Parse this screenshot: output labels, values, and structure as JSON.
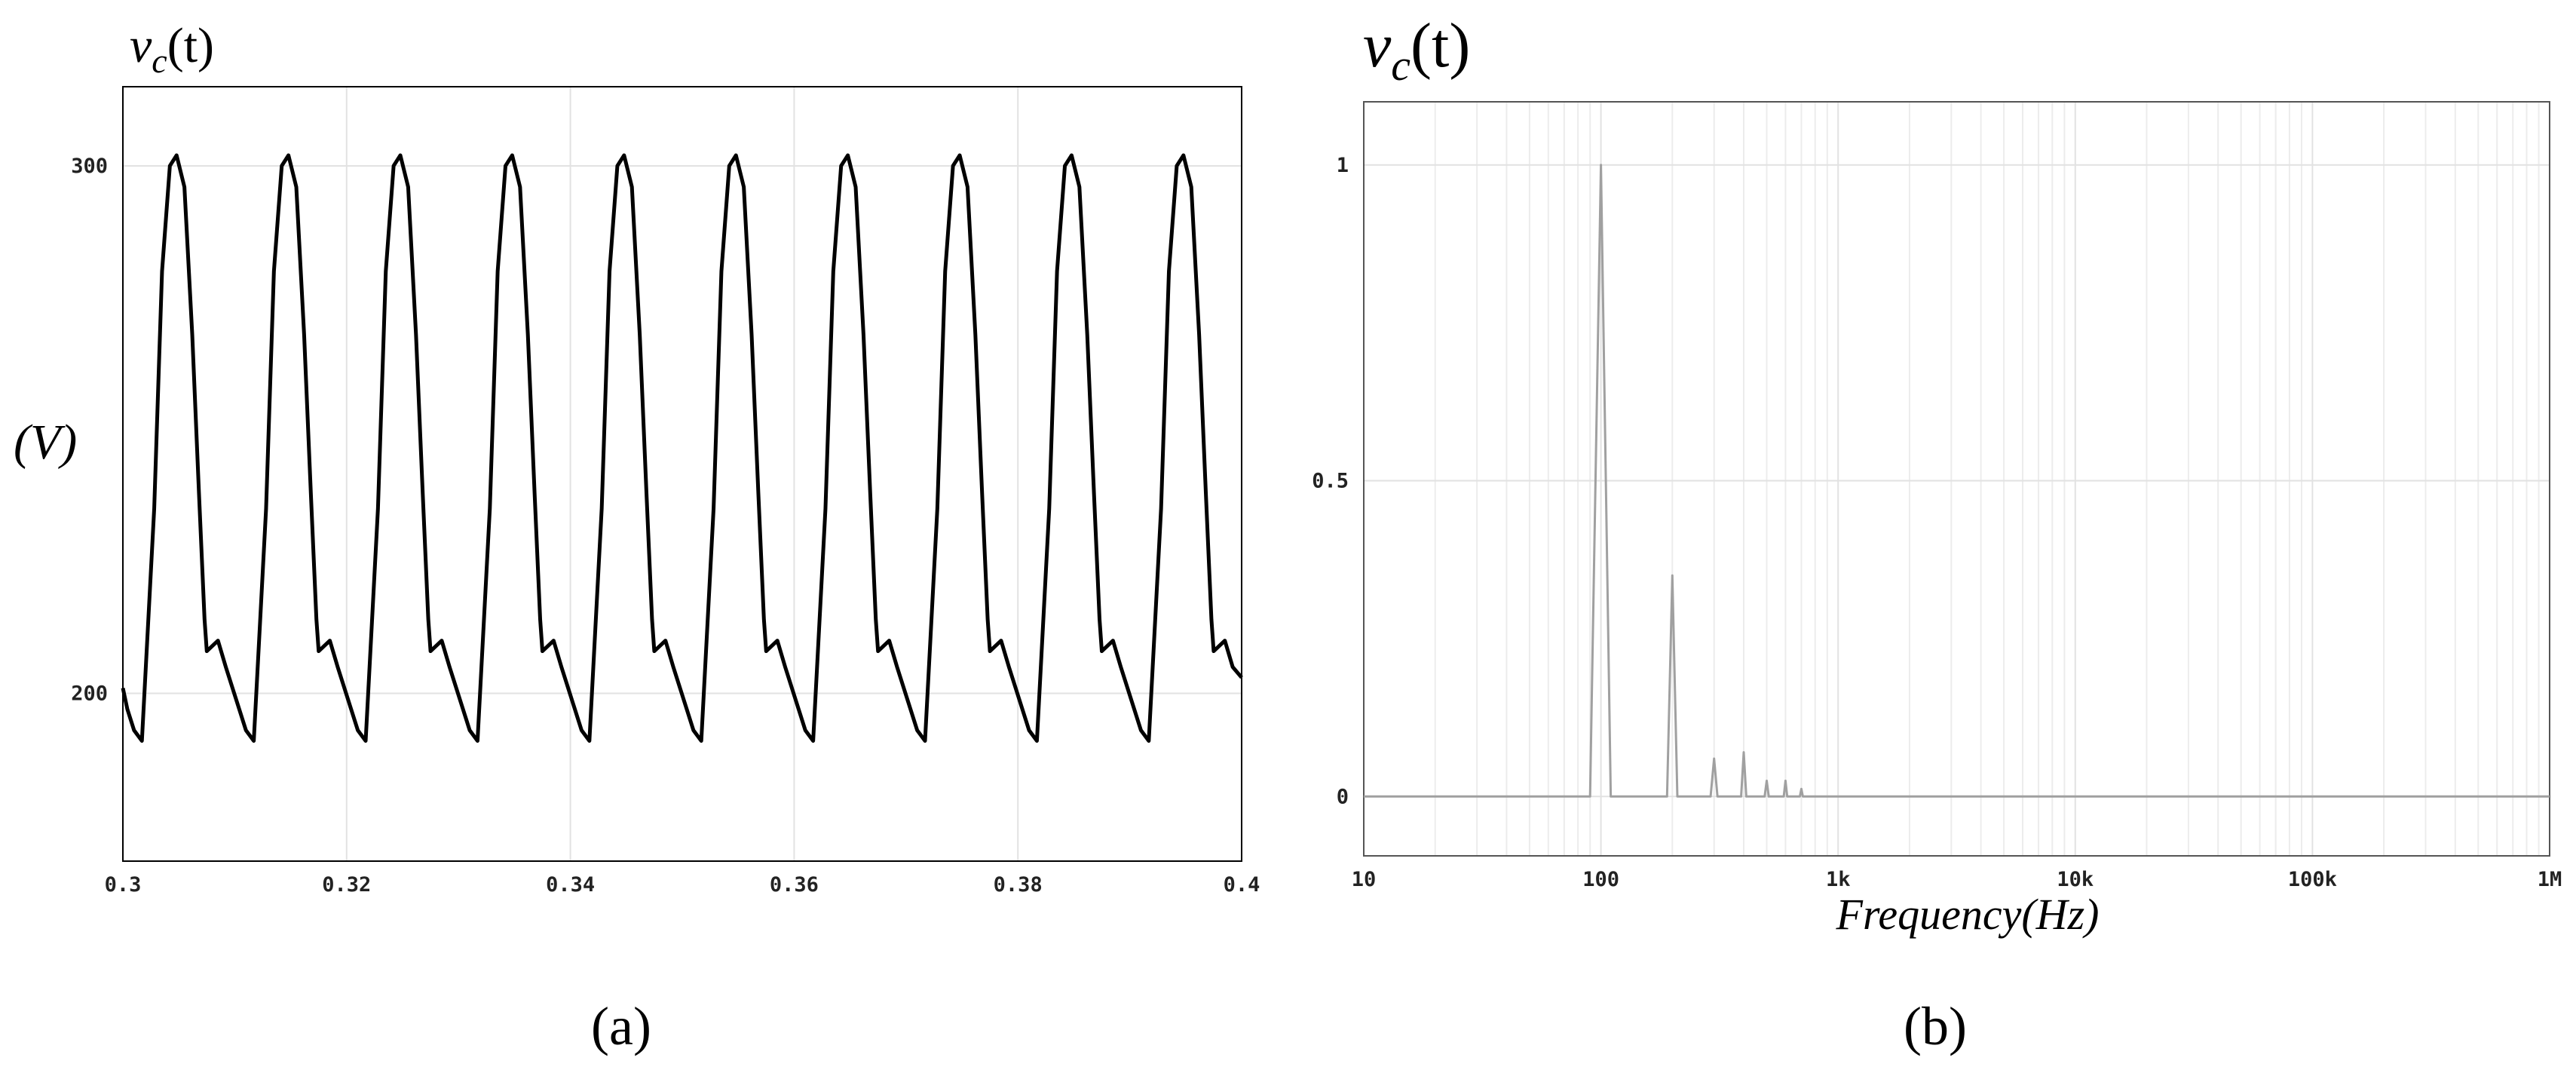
{
  "chart_data": [
    {
      "type": "line",
      "title": "v",
      "title_subscript": "c",
      "title_suffix": "(t)",
      "ylabel": "(V)",
      "panel_label": "(a)",
      "xlim": [
        0.3,
        0.4
      ],
      "xticks": [
        0.3,
        0.32,
        0.34,
        0.36,
        0.38,
        0.4
      ],
      "ylim": [
        168.2,
        315
      ],
      "yticks": [
        200,
        300
      ],
      "grid": true,
      "log_x": false,
      "series": [
        {
          "color": "#000000",
          "x": [
            0.3,
            0.3004,
            0.301,
            0.3017,
            0.3028,
            0.3035,
            0.3042,
            0.3048,
            0.3055,
            0.3062,
            0.3068,
            0.3073,
            0.3075,
            0.3085,
            0.3092,
            0.3104,
            0.311,
            0.3117,
            0.3128,
            0.3135,
            0.3142,
            0.3148,
            0.3155,
            0.3162,
            0.3168,
            0.3173,
            0.3175,
            0.3185,
            0.3192,
            0.3204,
            0.321,
            0.3217,
            0.3228,
            0.3235,
            0.3242,
            0.3248,
            0.3255,
            0.3262,
            0.3268,
            0.3273,
            0.3275,
            0.3285,
            0.3292,
            0.3304,
            0.331,
            0.3317,
            0.3328,
            0.3335,
            0.3342,
            0.3348,
            0.3355,
            0.3362,
            0.3368,
            0.3373,
            0.3375,
            0.3385,
            0.3392,
            0.3404,
            0.341,
            0.3417,
            0.3428,
            0.3435,
            0.3442,
            0.3448,
            0.3455,
            0.3462,
            0.3468,
            0.3473,
            0.3475,
            0.3485,
            0.3492,
            0.3504,
            0.351,
            0.3517,
            0.3528,
            0.3535,
            0.3542,
            0.3548,
            0.3555,
            0.3562,
            0.3568,
            0.3573,
            0.3575,
            0.3585,
            0.3592,
            0.3604,
            0.361,
            0.3617,
            0.3628,
            0.3635,
            0.3642,
            0.3648,
            0.3655,
            0.3662,
            0.3668,
            0.3673,
            0.3675,
            0.3685,
            0.3692,
            0.3704,
            0.371,
            0.3717,
            0.3728,
            0.3735,
            0.3742,
            0.3748,
            0.3755,
            0.3762,
            0.3768,
            0.3773,
            0.3775,
            0.3785,
            0.3792,
            0.3804,
            0.381,
            0.3817,
            0.3828,
            0.3835,
            0.3842,
            0.3848,
            0.3855,
            0.3862,
            0.3868,
            0.3873,
            0.3875,
            0.3885,
            0.3892,
            0.3904,
            0.391,
            0.3917,
            0.3928,
            0.3935,
            0.3942,
            0.3948,
            0.3955,
            0.3962,
            0.3968,
            0.3973,
            0.3975,
            0.3985,
            0.3992,
            0.4
          ],
          "values": [
            201,
            197,
            193,
            191,
            235,
            280,
            300,
            302,
            296,
            268,
            238,
            214,
            208,
            210,
            205,
            197,
            193,
            191,
            235,
            280,
            300,
            302,
            296,
            268,
            238,
            214,
            208,
            210,
            205,
            197,
            193,
            191,
            235,
            280,
            300,
            302,
            296,
            268,
            238,
            214,
            208,
            210,
            205,
            197,
            193,
            191,
            235,
            280,
            300,
            302,
            296,
            268,
            238,
            214,
            208,
            210,
            205,
            197,
            193,
            191,
            235,
            280,
            300,
            302,
            296,
            268,
            238,
            214,
            208,
            210,
            205,
            197,
            193,
            191,
            235,
            280,
            300,
            302,
            296,
            268,
            238,
            214,
            208,
            210,
            205,
            197,
            193,
            191,
            235,
            280,
            300,
            302,
            296,
            268,
            238,
            214,
            208,
            210,
            205,
            197,
            193,
            191,
            235,
            280,
            300,
            302,
            296,
            268,
            238,
            214,
            208,
            210,
            205,
            197,
            193,
            191,
            235,
            280,
            300,
            302,
            296,
            268,
            238,
            214,
            208,
            210,
            205,
            197,
            193,
            191,
            235,
            280,
            300,
            302,
            296,
            268,
            238,
            214,
            208,
            210,
            205,
            203
          ]
        }
      ]
    },
    {
      "type": "line",
      "title": "v",
      "title_subscript": "c",
      "title_suffix": "(t)",
      "xlabel": "Frequency(Hz)",
      "panel_label": "(b)",
      "xlim": [
        10,
        1000000
      ],
      "xticks": [
        10,
        100,
        {
          "value": 1000,
          "label": "1k"
        },
        {
          "value": 10000,
          "label": "10k"
        },
        {
          "value": 100000,
          "label": "100k"
        },
        {
          "value": 1000000,
          "label": "1M"
        }
      ],
      "ylim": [
        -0.094,
        1.1
      ],
      "yticks": [
        0,
        0.5,
        1
      ],
      "grid": true,
      "minor_grid": true,
      "log_x": true,
      "series": [
        {
          "color": "#a0a0a0",
          "x": [
            10,
            90,
            100,
            110,
            190,
            200,
            210,
            290,
            300,
            310,
            390,
            400,
            410,
            490,
            500,
            510,
            590,
            600,
            610,
            690,
            700,
            710,
            1000000
          ],
          "values": [
            0,
            0,
            1,
            0,
            0,
            0.35,
            0,
            0,
            0.06,
            0,
            0,
            0.07,
            0,
            0,
            0.025,
            0,
            0,
            0.025,
            0,
            0,
            0.012,
            0,
            0
          ]
        }
      ]
    }
  ]
}
